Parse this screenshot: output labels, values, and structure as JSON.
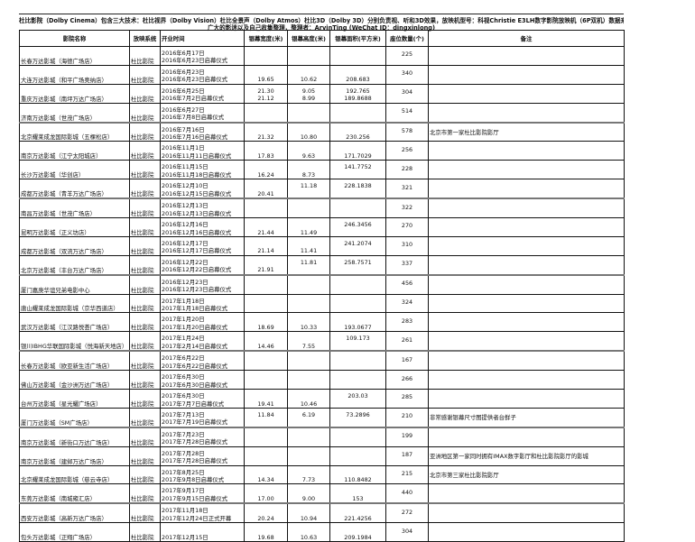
{
  "title": {
    "line1": "杜比影院（Dolby Cinema）包含三大技术：杜比视界（Dolby Vision）杜比全景声（Dolby Atmos）杜比3D（Dolby 3D）分别负责视、听和3D效果，放映机型号：科视Christie E3LH数字影院放映机（6P双机）数据来自",
    "line2": "广大的影迷以及自己收集整理，整理者：ArvinTing (WeChat ID：dingxinlong)"
  },
  "table": {
    "headers": [
      "影院名称",
      "放映系统",
      "开业时间",
      "银幕宽度(米)",
      "银幕高度(米)",
      "银幕面积(平方米)",
      "座位数量(个)",
      "备注"
    ],
    "rows": [
      {
        "name": "长春万达影城（海德广场店）",
        "system": "杜比影院",
        "date": [
          "2016年6月17日",
          "2016年6月23日启幕仪式"
        ],
        "width": [
          "",
          ""
        ],
        "height": [
          "",
          ""
        ],
        "area": [
          "",
          ""
        ],
        "seats": "225",
        "note": ""
      },
      {
        "name": "大连万达影城（和平广场奥纳店）",
        "system": "杜比影院",
        "date": [
          "2016年6月23日",
          "2016年6月23日启幕仪式"
        ],
        "width": [
          "",
          "19.65"
        ],
        "height": [
          "",
          "10.62"
        ],
        "area": [
          "",
          "208.683"
        ],
        "seats": "340",
        "note": ""
      },
      {
        "name": "重庆万达影城（南坪万达广场店）",
        "system": "杜比影院",
        "date": [
          "2016年6月25日",
          "2016年7月2日启幕仪式"
        ],
        "width": [
          "21.30",
          "21.12"
        ],
        "height": [
          "9.05",
          "8.99"
        ],
        "area": [
          "192.765",
          "189.8688"
        ],
        "seats": "304",
        "note": ""
      },
      {
        "name": "济南万达影城（世茂广场店）",
        "system": "杜比影院",
        "date": [
          "2016年6月27日",
          "2016年7月8日启幕仪式"
        ],
        "width": [
          "",
          ""
        ],
        "height": [
          "",
          ""
        ],
        "area": [
          "",
          ""
        ],
        "seats": "514",
        "note": ""
      },
      {
        "name": "北京耀莱成龙国际影城（五棵松店）",
        "system": "杜比影院",
        "date": [
          "2016年7月16日",
          "2016年7月16日启幕仪式"
        ],
        "width": [
          "",
          "21.32"
        ],
        "height": [
          "",
          "10.80"
        ],
        "area": [
          "",
          "230.256"
        ],
        "seats": "578",
        "note": "北京市第一家杜比影院影厅"
      },
      {
        "name": "南京万达影城（江宁太阳城店）",
        "system": "杜比影院",
        "date": [
          "2016年11月1日",
          "2016年11月11日启幕仪式"
        ],
        "width": [
          "",
          "17.83"
        ],
        "height": [
          "",
          "9.63"
        ],
        "area": [
          "",
          "171.7029"
        ],
        "seats": "256",
        "note": ""
      },
      {
        "name": "长沙万达影城（华创店）",
        "system": "杜比影院",
        "date": [
          "2016年11月15日",
          "2016年11月18日启幕仪式"
        ],
        "width": [
          "",
          "16.24"
        ],
        "height": [
          "",
          "8.73"
        ],
        "area": [
          "141.7752",
          ""
        ],
        "seats": "228",
        "note": ""
      },
      {
        "name": "成都万达影城（青羊万达广场店）",
        "system": "杜比影院",
        "date": [
          "2016年12月10日",
          "2016年12月15日启幕仪式"
        ],
        "width": [
          "",
          "20.41"
        ],
        "height": [
          "11.18",
          ""
        ],
        "area": [
          "228.1838",
          ""
        ],
        "seats": "321",
        "note": ""
      },
      {
        "name": "南昌万达影城（世茂广场店）",
        "system": "杜比影院",
        "date": [
          "2016年12月13日",
          "2016年12月13日启幕仪式"
        ],
        "width": [
          "",
          ""
        ],
        "height": [
          "",
          ""
        ],
        "area": [
          "",
          ""
        ],
        "seats": "322",
        "note": ""
      },
      {
        "name": "昆明万达影城（正义坊店）",
        "system": "杜比影院",
        "date": [
          "2016年12月16日",
          "2016年12月16日启幕仪式"
        ],
        "width": [
          "",
          "21.44"
        ],
        "height": [
          "",
          "11.49"
        ],
        "area": [
          "246.3456",
          ""
        ],
        "seats": "270",
        "note": ""
      },
      {
        "name": "成都万达影城（双流万达广场店）",
        "system": "杜比影院",
        "date": [
          "2016年12月17日",
          "2016年12月17日启幕仪式"
        ],
        "width": [
          "",
          "21.14"
        ],
        "height": [
          "",
          "11.41"
        ],
        "area": [
          "241.2074",
          ""
        ],
        "seats": "310",
        "note": ""
      },
      {
        "name": "北京万达影城（丰台万达广场店）",
        "system": "杜比影院",
        "date": [
          "2016年12月22日",
          "2016年12月22日启幕仪式"
        ],
        "width": [
          "",
          "21.91"
        ],
        "height": [
          "11.81",
          ""
        ],
        "area": [
          "258.7571",
          ""
        ],
        "seats": "337",
        "note": ""
      },
      {
        "name": "厦门嘉庚华谊兄弟电影中心",
        "system": "杜比影院",
        "date": [
          "2016年12月23日",
          "2016年12月23日启幕仪式"
        ],
        "width": [
          "",
          ""
        ],
        "height": [
          "",
          ""
        ],
        "area": [
          "",
          ""
        ],
        "seats": "456",
        "note": ""
      },
      {
        "name": "唐山耀莱成龙国际影城（京华西道店）",
        "system": "杜比影院",
        "date": [
          "2017年1月18日",
          "2017年1月18日启幕仪式"
        ],
        "width": [
          "",
          ""
        ],
        "height": [
          "",
          ""
        ],
        "area": [
          "",
          ""
        ],
        "seats": "324",
        "note": ""
      },
      {
        "name": "武汉万达影城（江汉路悦荟广场店）",
        "system": "杜比影院",
        "date": [
          "2017年1月20日",
          "2017年1月20日启幕仪式"
        ],
        "width": [
          "",
          "18.69"
        ],
        "height": [
          "",
          "10.33"
        ],
        "area": [
          "",
          "193.0677"
        ],
        "seats": "283",
        "note": ""
      },
      {
        "name": "银川IBHG华联国际影城（悦海新天地店）",
        "system": "杜比影院",
        "date": [
          "2017年1月24日",
          "2017年2月14日启幕仪式"
        ],
        "width": [
          "",
          "14.46"
        ],
        "height": [
          "",
          "7.55"
        ],
        "area": [
          "109.173",
          ""
        ],
        "seats": "261",
        "note": ""
      },
      {
        "name": "长春万达影城（欧亚新生活广场店）",
        "system": "杜比影院",
        "date": [
          "2017年6月22日",
          "2017年6月22日启幕仪式"
        ],
        "width": [
          "",
          ""
        ],
        "height": [
          "",
          ""
        ],
        "area": [
          "",
          ""
        ],
        "seats": "167",
        "note": ""
      },
      {
        "name": "佛山万达影城（金沙洲万达广场店）",
        "system": "杜比影院",
        "date": [
          "2017年6月30日",
          "2017年6月30日启幕仪式"
        ],
        "width": [
          "",
          ""
        ],
        "height": [
          "",
          ""
        ],
        "area": [
          "",
          ""
        ],
        "seats": "266",
        "note": ""
      },
      {
        "name": "台州万达影城（星光耀广场店）",
        "system": "杜比影院",
        "date": [
          "2017年6月30日",
          "2017年7月7日启幕仪式"
        ],
        "width": [
          "",
          "19.41"
        ],
        "height": [
          "",
          "10.46"
        ],
        "area": [
          "203.03",
          ""
        ],
        "seats": "285",
        "note": ""
      },
      {
        "name": "厦门万达影城（SM广场店）",
        "system": "杜比影院",
        "date": [
          "2017年7月13日",
          "2017年7月19日启幕仪式"
        ],
        "width": [
          "11.84",
          ""
        ],
        "height": [
          "6.19",
          ""
        ],
        "area": [
          "73.2896",
          ""
        ],
        "seats": "210",
        "note": "非常感谢银幕尺寸图提供者台鲜子"
      },
      {
        "name": "南京万达影城（新街口万达广场店）",
        "system": "杜比影院",
        "date": [
          "2017年7月23日",
          "2017年7月28日启幕仪式"
        ],
        "width": [
          "",
          ""
        ],
        "height": [
          "",
          ""
        ],
        "area": [
          "",
          ""
        ],
        "seats": "199",
        "note": ""
      },
      {
        "name": "南京万达影城（建邺万达广场店）",
        "system": "杜比影院",
        "date": [
          "2017年7月28日",
          "2017年7月28日启幕仪式"
        ],
        "width": [
          "",
          ""
        ],
        "height": [
          "",
          ""
        ],
        "area": [
          "",
          ""
        ],
        "seats": "187",
        "note": "亚洲地区第一家同时拥有IMAX数字影厅和杜比影院影厅的影城"
      },
      {
        "name": "北京耀莱成龙国际影城（慈云寺店）",
        "system": "杜比影院",
        "date": [
          "2017年8月25日",
          "2017年9月8日启幕仪式"
        ],
        "width": [
          "",
          "14.34"
        ],
        "height": [
          "",
          "7.73"
        ],
        "area": [
          "",
          "110.8482"
        ],
        "seats": "215",
        "note": "北京市第三家杜比影院影厅"
      },
      {
        "name": "东莞万达影城（南城雍汇店）",
        "system": "杜比影院",
        "date": [
          "2017年9月17日",
          "2017年9月15日启幕仪式"
        ],
        "width": [
          "",
          "17.00"
        ],
        "height": [
          "",
          "9.00"
        ],
        "area": [
          "",
          "153"
        ],
        "seats": "440",
        "note": ""
      },
      {
        "name": "西安万达影城（高新万达广场店）",
        "system": "杜比影院",
        "date": [
          "2017年11月18日",
          "2017年12月24日正式开幕"
        ],
        "width": [
          "",
          "20.24"
        ],
        "height": [
          "",
          "10.94"
        ],
        "area": [
          "",
          "221.4256"
        ],
        "seats": "272",
        "note": ""
      },
      {
        "name": "包头万达影城（正翔广场店）",
        "system": "杜比影院",
        "date": [
          "",
          "2017年12月15日"
        ],
        "width": [
          "",
          "19.68"
        ],
        "height": [
          "",
          "10.63"
        ],
        "area": [
          "",
          "209.1984"
        ],
        "seats": "304",
        "note": ""
      }
    ]
  }
}
